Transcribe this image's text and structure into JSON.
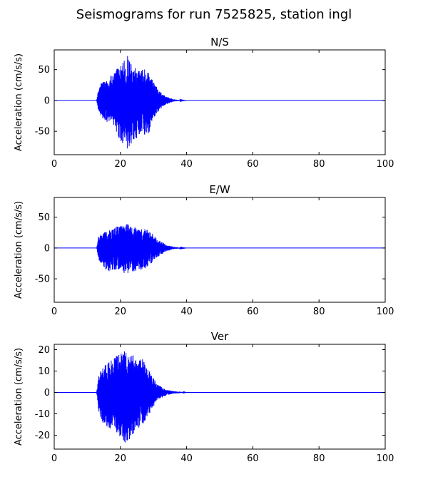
{
  "figure": {
    "title": "Seismograms for run 7525825, station ingl"
  },
  "chart_data": [
    {
      "type": "line",
      "title": "N/S",
      "xlabel": "",
      "ylabel": "Acceleration (cm/s/s)",
      "xlim": [
        0,
        100
      ],
      "ylim": [
        -88,
        82
      ],
      "xticks": [
        0,
        20,
        40,
        60,
        80,
        100
      ],
      "yticks": [
        -50,
        0,
        50
      ],
      "color": "#0000ff",
      "envelope": {
        "t": [
          0,
          12.8,
          13.5,
          14.5,
          16,
          18,
          19.5,
          21,
          22,
          23,
          24,
          25.5,
          27,
          28.5,
          30,
          31.5,
          33,
          34.5,
          36,
          38,
          40,
          100
        ],
        "upper": [
          0,
          0,
          24,
          30,
          35,
          45,
          55,
          65,
          75,
          62,
          55,
          48,
          52,
          48,
          30,
          18,
          9,
          5,
          2,
          0.5,
          0,
          0
        ],
        "lower": [
          0,
          0,
          -22,
          -30,
          -35,
          -40,
          -60,
          -75,
          -80,
          -72,
          -65,
          -60,
          -58,
          -55,
          -30,
          -18,
          -9,
          -5,
          -2,
          -0.5,
          0,
          0
        ]
      }
    },
    {
      "type": "line",
      "title": "E/W",
      "xlabel": "",
      "ylabel": "Acceleration (cm/s/s)",
      "xlim": [
        0,
        100
      ],
      "ylim": [
        -88,
        82
      ],
      "xticks": [
        0,
        20,
        40,
        60,
        80,
        100
      ],
      "yticks": [
        -50,
        0,
        50
      ],
      "color": "#0000ff",
      "envelope": {
        "t": [
          0,
          12.8,
          13.5,
          14.5,
          16,
          17.5,
          19,
          20.5,
          22,
          23.5,
          25,
          26.5,
          28,
          29.5,
          31,
          32.5,
          34,
          36,
          38,
          40,
          100
        ],
        "upper": [
          0,
          0,
          22,
          24,
          28,
          30,
          35,
          38,
          40,
          36,
          32,
          33,
          30,
          24,
          16,
          10,
          5,
          2,
          0.5,
          0,
          0
        ],
        "lower": [
          0,
          0,
          -20,
          -28,
          -38,
          -38,
          -34,
          -40,
          -42,
          -40,
          -36,
          -35,
          -32,
          -24,
          -16,
          -10,
          -5,
          -2,
          -0.5,
          0,
          0
        ]
      }
    },
    {
      "type": "line",
      "title": "Ver",
      "xlabel": "",
      "ylabel": "Acceleration (cm/s/s)",
      "xlim": [
        0,
        100
      ],
      "ylim": [
        -26.5,
        22.5
      ],
      "xticks": [
        0,
        20,
        40,
        60,
        80,
        100
      ],
      "yticks": [
        -20,
        -10,
        0,
        10,
        20
      ],
      "color": "#0000ff",
      "envelope": {
        "t": [
          0,
          12.8,
          13.5,
          14.5,
          16,
          17.5,
          19,
          20.5,
          21.5,
          22.5,
          23.5,
          25,
          26.5,
          28,
          29.5,
          31,
          32.5,
          34,
          36,
          38,
          40,
          100
        ],
        "upper": [
          0,
          0,
          8,
          12,
          14,
          16,
          18,
          20,
          20,
          19,
          18,
          15,
          16,
          12,
          8,
          4,
          2.5,
          1.2,
          0.6,
          0.3,
          0,
          0
        ],
        "lower": [
          0,
          0,
          -10,
          -14,
          -16,
          -18,
          -20,
          -22,
          -24,
          -23,
          -20,
          -18,
          -16,
          -12,
          -8,
          -4,
          -2.5,
          -1.2,
          -0.6,
          -0.3,
          0,
          0
        ]
      }
    }
  ]
}
